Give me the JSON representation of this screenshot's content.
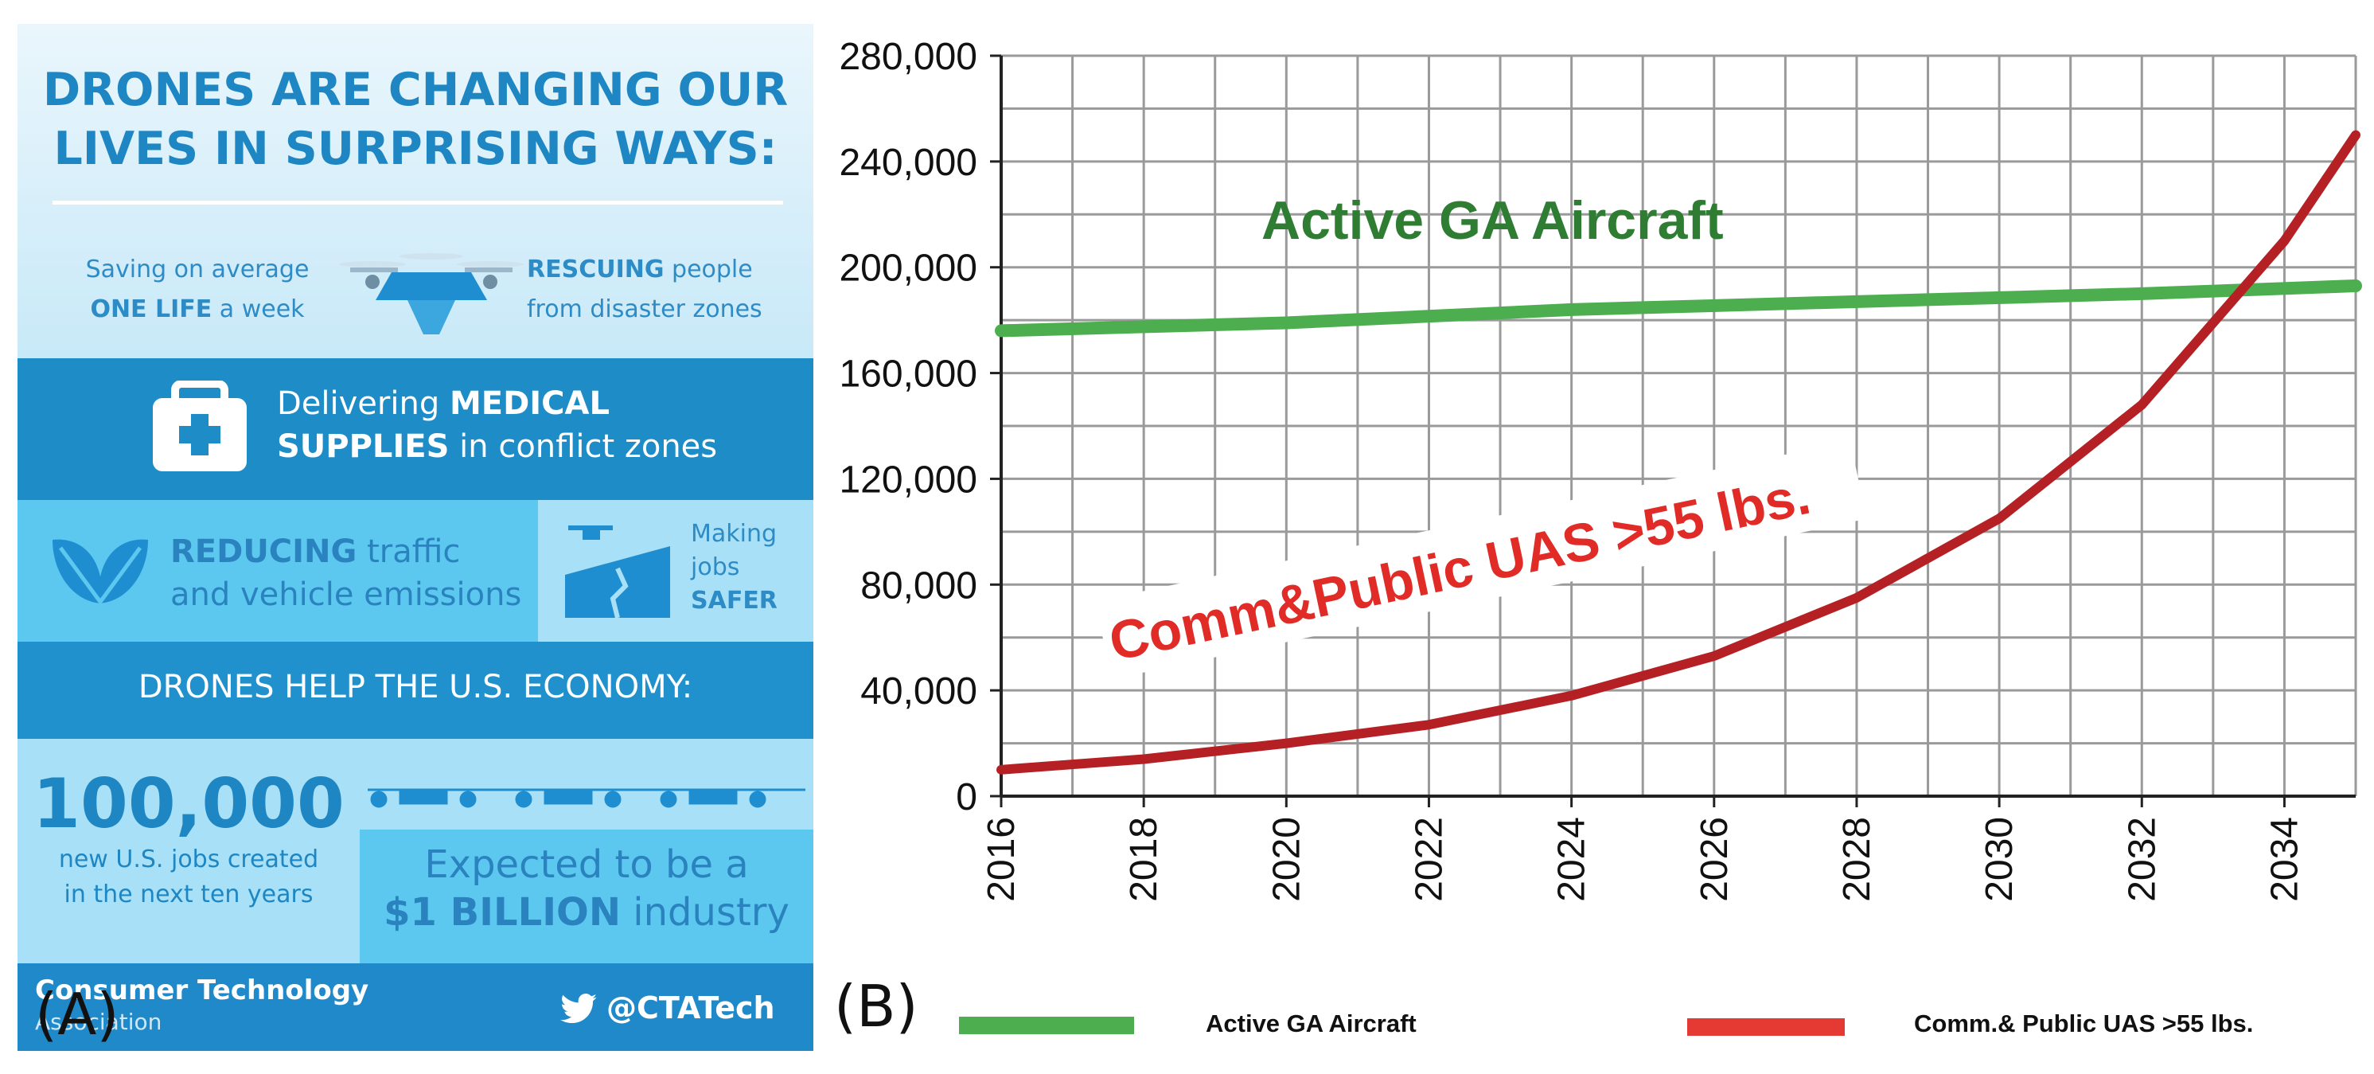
{
  "panel_labels": {
    "a": "(A)",
    "b": "(B)"
  },
  "infographic": {
    "title_line1": "DRONES ARE CHANGING OUR",
    "title_line2": "LIVES IN SURPRISING WAYS:",
    "saving": {
      "line1": "Saving on average",
      "bold": "ONE LIFE",
      "rest": "a week"
    },
    "rescuing": {
      "bold": "RESCUING",
      "rest1": "people",
      "line2": "from disaster zones"
    },
    "medical": {
      "pre": "Delivering",
      "bold1": "MEDICAL",
      "bold2": "SUPPLIES",
      "rest": "in conflict zones"
    },
    "reducing": {
      "bold": "REDUCING",
      "rest1": "traffic",
      "line2": "and vehicle emissions"
    },
    "safer": {
      "line1": "Making",
      "line2": "jobs",
      "bold": "SAFER"
    },
    "economy_header": "DRONES HELP THE U.S. ECONOMY:",
    "jobs": {
      "number": "100,000",
      "line1": "new U.S. jobs created",
      "line2": "in the next ten years"
    },
    "industry": {
      "line1": "Expected to be a",
      "bold": "$1 BILLION",
      "rest": "industry"
    },
    "footer": {
      "org_line1": "Consumer Technology",
      "org_line2": "Association",
      "handle": "@CTATech"
    }
  },
  "chart_data": {
    "type": "line",
    "x_ticks": [
      "2016",
      "2018",
      "2020",
      "2022",
      "2024",
      "2026",
      "2028",
      "2030",
      "2032",
      "2034"
    ],
    "y_ticks": [
      "0",
      "40,000",
      "80,000",
      "120,000",
      "160,000",
      "200,000",
      "240,000",
      "280,000"
    ],
    "xlim": [
      2016,
      2035
    ],
    "ylim": [
      0,
      280000
    ],
    "grid": true,
    "series": [
      {
        "name": "Active GA Aircraft",
        "color": "#4cae4f",
        "x": [
          2016,
          2020,
          2024,
          2028,
          2032,
          2035
        ],
        "y": [
          176000,
          179000,
          184000,
          187000,
          190000,
          193000
        ]
      },
      {
        "name": "Comm.& Public UAS >55 lbs.",
        "color": "#b52025",
        "x": [
          2016,
          2018,
          2020,
          2022,
          2024,
          2026,
          2028,
          2030,
          2032,
          2034,
          2035
        ],
        "y": [
          10000,
          14000,
          20000,
          27000,
          38000,
          53000,
          75000,
          105000,
          148000,
          210000,
          250000
        ]
      }
    ],
    "annotations": {
      "green": "Active GA Aircraft",
      "red": "Comm&Public UAS >55 lbs."
    },
    "legend": [
      "Active GA Aircraft",
      "Comm.& Public UAS >55 lbs."
    ]
  }
}
